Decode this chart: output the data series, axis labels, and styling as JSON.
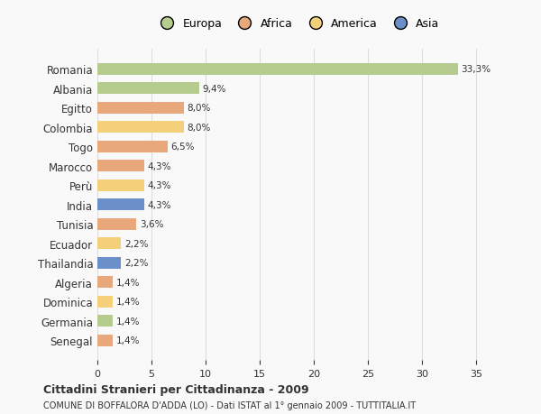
{
  "countries": [
    "Romania",
    "Albania",
    "Egitto",
    "Colombia",
    "Togo",
    "Marocco",
    "Perù",
    "India",
    "Tunisia",
    "Ecuador",
    "Thailandia",
    "Algeria",
    "Dominica",
    "Germania",
    "Senegal"
  ],
  "values": [
    33.3,
    9.4,
    8.0,
    8.0,
    6.5,
    4.3,
    4.3,
    4.3,
    3.6,
    2.2,
    2.2,
    1.4,
    1.4,
    1.4,
    1.4
  ],
  "labels": [
    "33,3%",
    "9,4%",
    "8,0%",
    "8,0%",
    "6,5%",
    "4,3%",
    "4,3%",
    "4,3%",
    "3,6%",
    "2,2%",
    "2,2%",
    "1,4%",
    "1,4%",
    "1,4%",
    "1,4%"
  ],
  "continents": [
    "Europa",
    "Europa",
    "Africa",
    "America",
    "Africa",
    "Africa",
    "America",
    "Asia",
    "Africa",
    "America",
    "Asia",
    "Africa",
    "America",
    "Europa",
    "Africa"
  ],
  "colors": {
    "Europa": "#b5cc8e",
    "Africa": "#e8a87c",
    "America": "#f5d07a",
    "Asia": "#6b8fc9"
  },
  "legend_order": [
    "Europa",
    "Africa",
    "America",
    "Asia"
  ],
  "xlim": [
    0,
    37
  ],
  "xticks": [
    0,
    5,
    10,
    15,
    20,
    25,
    30,
    35
  ],
  "title": "Cittadini Stranieri per Cittadinanza - 2009",
  "subtitle": "COMUNE DI BOFFALORA D'ADDA (LO) - Dati ISTAT al 1° gennaio 2009 - TUTTITALIA.IT",
  "bg_color": "#f9f9f9",
  "grid_color": "#dddddd",
  "text_color": "#333333"
}
